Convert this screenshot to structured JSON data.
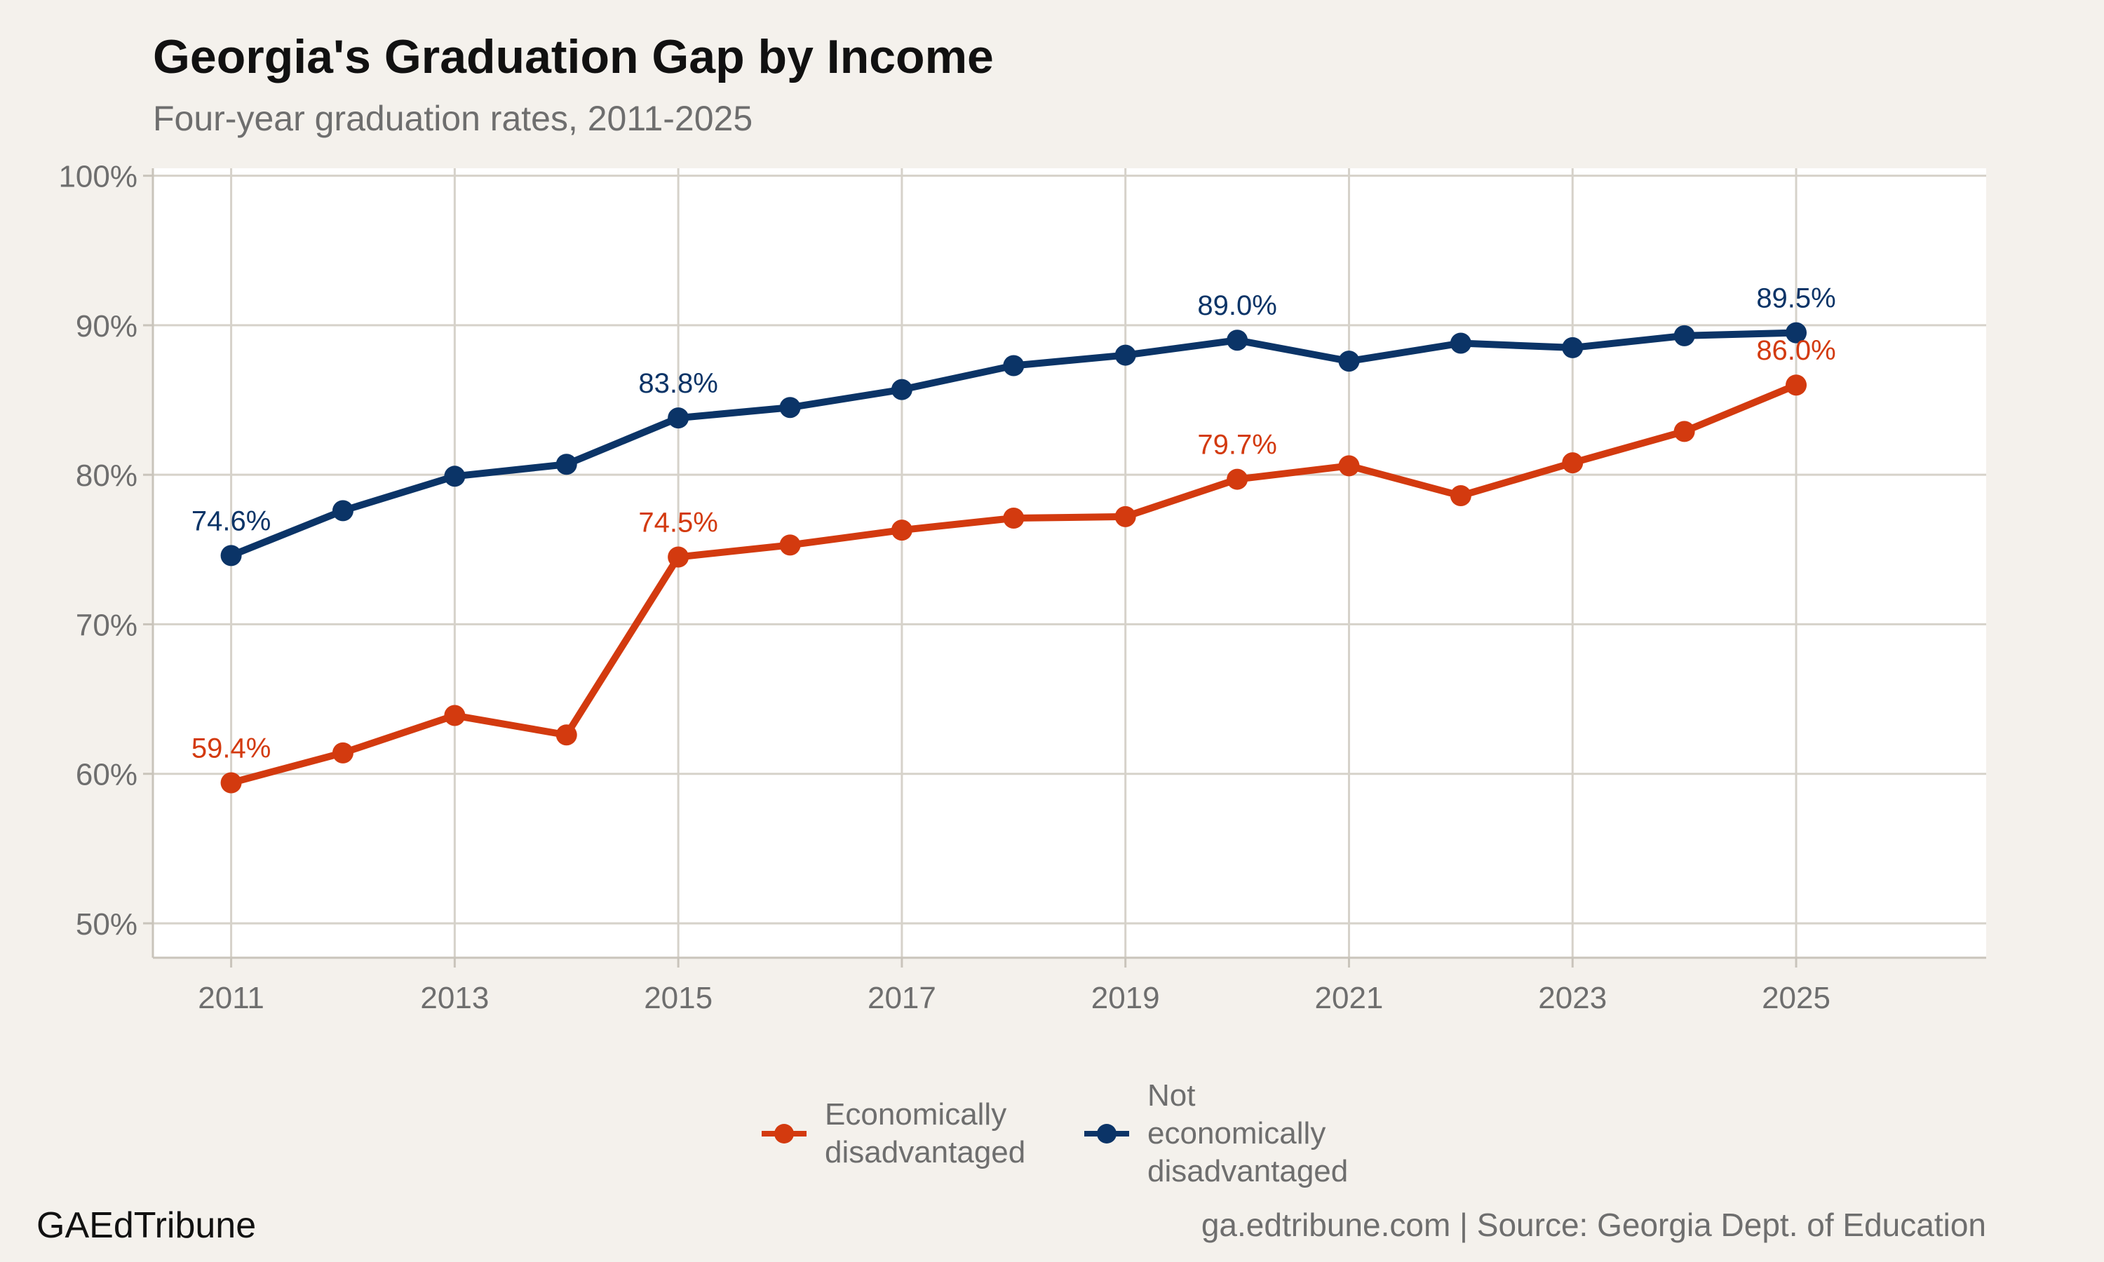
{
  "title": "Georgia's Graduation Gap by Income",
  "subtitle": "Four-year graduation rates, 2011-2025",
  "footer": {
    "brand": "GAEdTribune",
    "source": "ga.edtribune.com | Source: Georgia Dept. of Education"
  },
  "legend": {
    "items": [
      {
        "label_line1": "Economically",
        "label_line2": "disadvantaged",
        "color": "#d33a0f"
      },
      {
        "label_line1": "Not economically",
        "label_line2": "disadvantaged",
        "color": "#0b3467"
      }
    ]
  },
  "chart_data": {
    "type": "line",
    "x": [
      2011,
      2012,
      2013,
      2014,
      2015,
      2016,
      2017,
      2018,
      2019,
      2020,
      2021,
      2022,
      2023,
      2024,
      2025
    ],
    "xticks": [
      2011,
      2013,
      2015,
      2017,
      2019,
      2021,
      2023,
      2025
    ],
    "xlim": [
      2010.3,
      2026.7
    ],
    "ylim": [
      47.7,
      100.5
    ],
    "yticks": [
      50,
      60,
      70,
      80,
      90,
      100
    ],
    "ytick_labels": [
      "50%",
      "60%",
      "70%",
      "80%",
      "90%",
      "100%"
    ],
    "grid": true,
    "legend_position": "bottom",
    "series": [
      {
        "name": "Economically disadvantaged",
        "color": "#d33a0f",
        "values": [
          59.4,
          61.4,
          63.9,
          62.6,
          74.5,
          75.3,
          76.3,
          77.1,
          77.2,
          79.7,
          80.6,
          78.6,
          80.8,
          82.9,
          86.0
        ],
        "labels": [
          {
            "x": 2011,
            "text": "59.4%"
          },
          {
            "x": 2015,
            "text": "74.5%"
          },
          {
            "x": 2020,
            "text": "79.7%"
          },
          {
            "x": 2025,
            "text": "86.0%"
          }
        ]
      },
      {
        "name": "Not economically disadvantaged",
        "color": "#0b3467",
        "values": [
          74.6,
          77.6,
          79.9,
          80.7,
          83.8,
          84.5,
          85.7,
          87.3,
          88.0,
          89.0,
          87.6,
          88.8,
          88.5,
          89.3,
          89.5
        ],
        "labels": [
          {
            "x": 2011,
            "text": "74.6%"
          },
          {
            "x": 2015,
            "text": "83.8%"
          },
          {
            "x": 2020,
            "text": "89.0%"
          },
          {
            "x": 2025,
            "text": "89.5%"
          }
        ]
      }
    ]
  }
}
